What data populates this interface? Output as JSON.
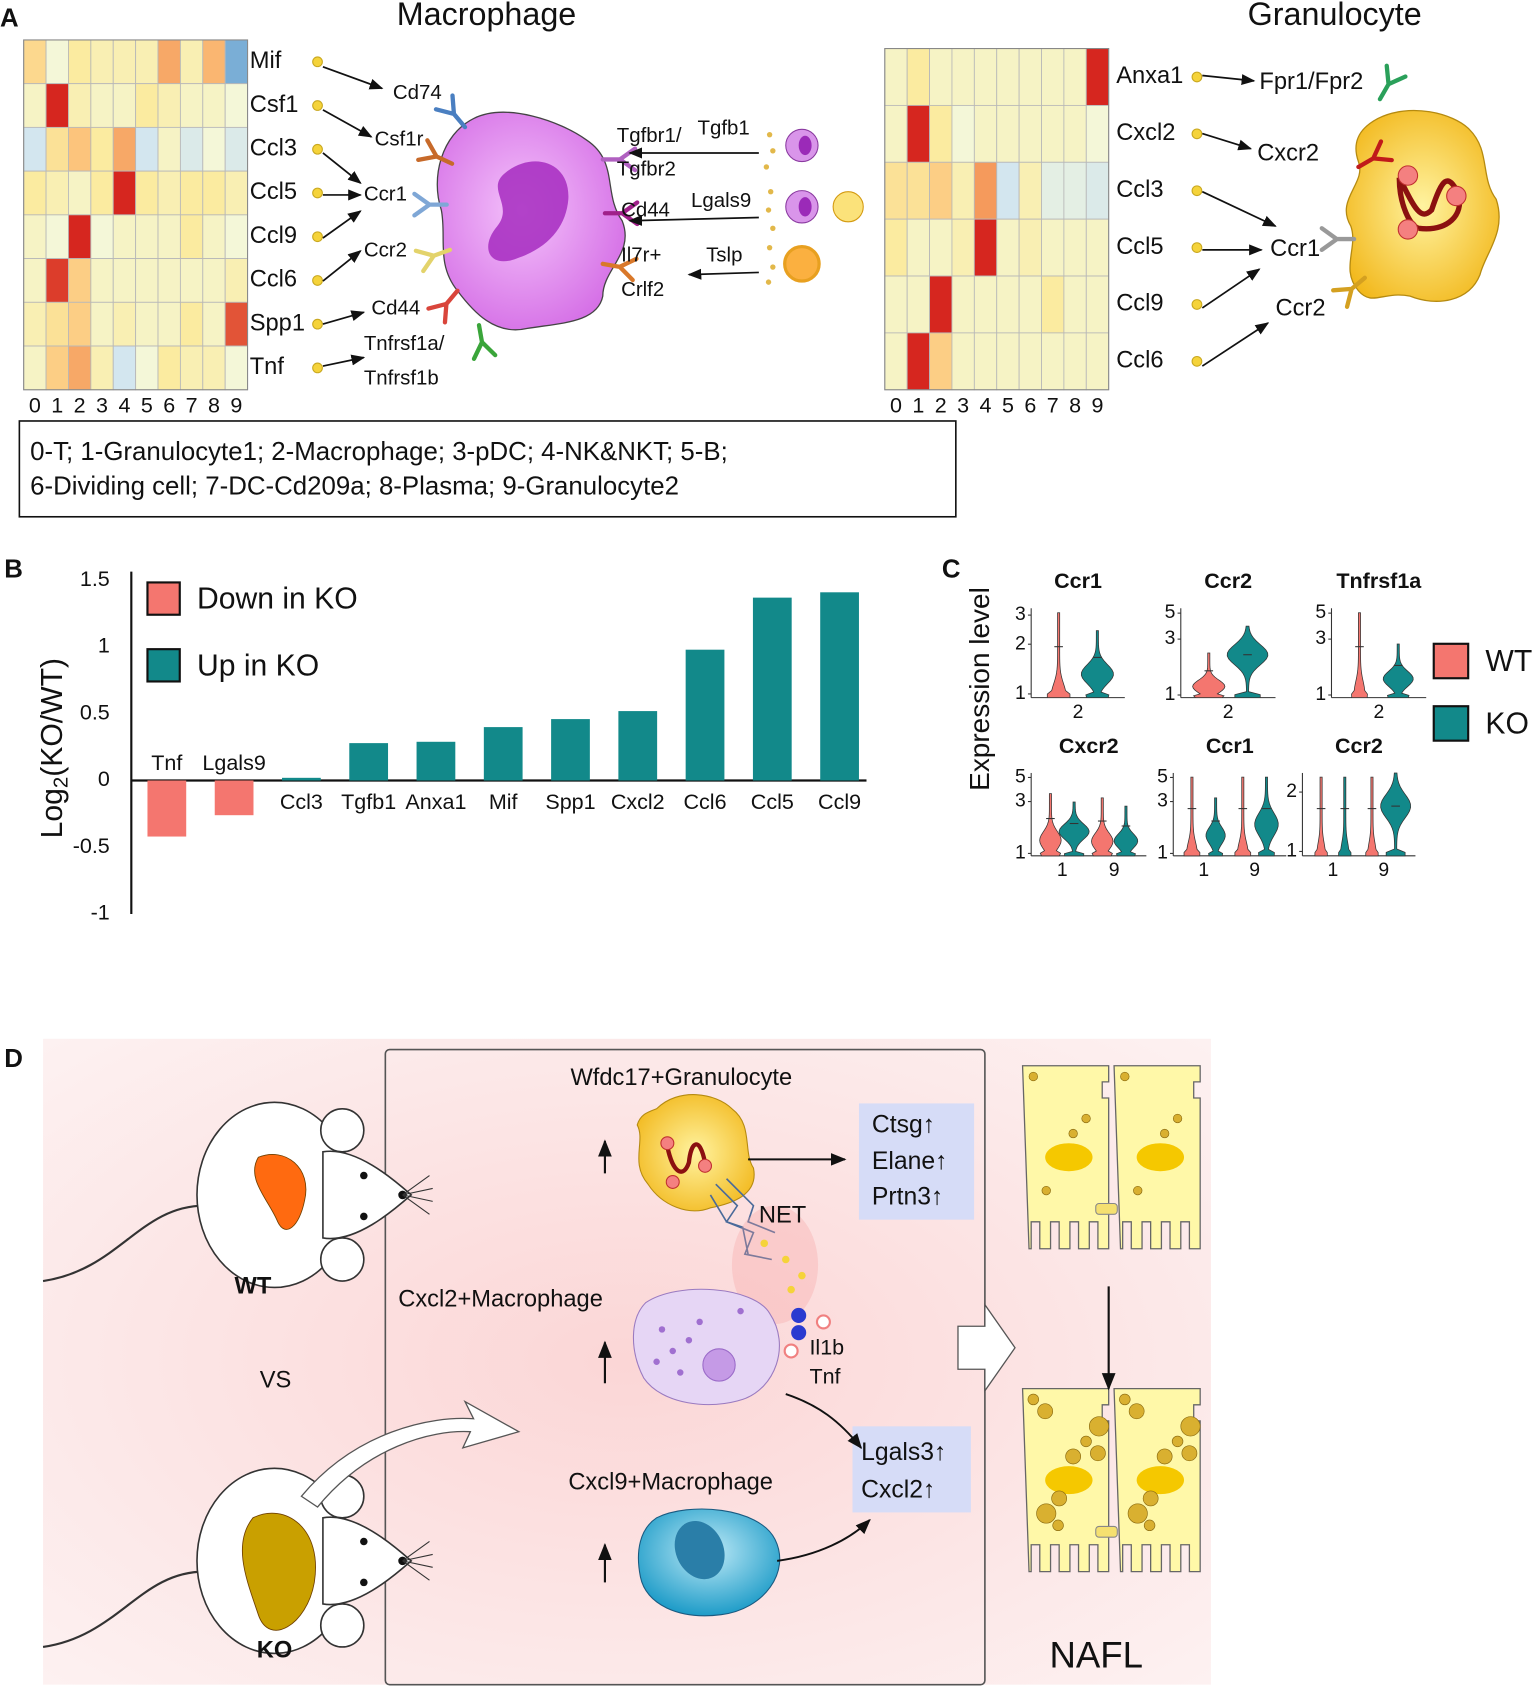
{
  "panel_labels": [
    "A",
    "B",
    "C",
    "D"
  ],
  "chart_data": [
    {
      "type": "heatmap",
      "title": "Macrophage",
      "rows": [
        "Mif",
        "Csf1",
        "Ccl3",
        "Ccl5",
        "Ccl9",
        "Ccl6",
        "Spp1",
        "Tnf"
      ],
      "categories": [
        "0",
        "1",
        "2",
        "3",
        "4",
        "5",
        "6",
        "7",
        "8",
        "9"
      ],
      "values": [
        [
          0.5,
          0,
          0.3,
          0.2,
          0.2,
          0.2,
          0.9,
          0.2,
          0.8,
          -1
        ],
        [
          0.1,
          2,
          0.2,
          0.1,
          0.1,
          0.3,
          0.2,
          0.1,
          0.1,
          0
        ],
        [
          -0.4,
          0.4,
          0.7,
          0.3,
          0.9,
          -0.4,
          0.1,
          -0.3,
          0,
          -0.3
        ],
        [
          0.3,
          0.2,
          0.1,
          0.3,
          2,
          0.3,
          0.2,
          0.3,
          0.3,
          0.2
        ],
        [
          0.1,
          0,
          2,
          0,
          0.1,
          0.1,
          0.1,
          0.3,
          0.1,
          0
        ],
        [
          0.1,
          1.8,
          0.6,
          0.1,
          0.1,
          0.1,
          0.1,
          0.1,
          0.1,
          0.2
        ],
        [
          0.2,
          0.4,
          0.6,
          0.1,
          0.2,
          0.1,
          0.1,
          0.3,
          0.1,
          1.6
        ],
        [
          0.1,
          0.6,
          0.9,
          0.2,
          -0.4,
          0,
          0.3,
          0.2,
          0.2,
          0
        ]
      ],
      "colorscale": [
        [
          -1,
          "#7aaed6"
        ],
        [
          -0.4,
          "#d3e6ef"
        ],
        [
          0,
          "#f4f7d8"
        ],
        [
          0.3,
          "#fbeba0"
        ],
        [
          0.7,
          "#fcc47c"
        ],
        [
          1,
          "#f59a5c"
        ],
        [
          2,
          "#d6261f"
        ]
      ]
    },
    {
      "type": "heatmap",
      "title": "Granulocyte",
      "rows": [
        "Anxa1",
        "Cxcl2",
        "Ccl3",
        "Ccl5",
        "Ccl9",
        "Ccl6"
      ],
      "categories": [
        "0",
        "1",
        "2",
        "3",
        "4",
        "5",
        "6",
        "7",
        "8",
        "9"
      ],
      "values": [
        [
          0.1,
          0.3,
          0.1,
          0.1,
          0.1,
          0.1,
          0.1,
          0.1,
          0.1,
          2
        ],
        [
          0.1,
          2,
          0.3,
          0,
          0.1,
          0.1,
          0.1,
          0.1,
          0.1,
          0
        ],
        [
          0.4,
          0.4,
          0.6,
          0.2,
          1,
          -0.4,
          0.2,
          -0.2,
          -0.2,
          -0.3
        ],
        [
          0.3,
          0.1,
          0.1,
          0.2,
          2,
          0.1,
          0.2,
          0.1,
          0.1,
          0.1
        ],
        [
          0.1,
          0.1,
          2,
          0.1,
          0.1,
          0.1,
          0.1,
          0.3,
          0.1,
          0.1
        ],
        [
          0.1,
          2,
          0.6,
          0.1,
          0.1,
          0.1,
          0.1,
          0.1,
          0.1,
          0.1
        ]
      ],
      "colorscale": [
        [
          -1,
          "#7aaed6"
        ],
        [
          -0.4,
          "#d3e6ef"
        ],
        [
          0,
          "#f4f7d8"
        ],
        [
          0.3,
          "#fbeba0"
        ],
        [
          0.7,
          "#fcc47c"
        ],
        [
          1,
          "#f59a5c"
        ],
        [
          2,
          "#d6261f"
        ]
      ]
    },
    {
      "type": "bar",
      "ylabel": {
        "text": "Log",
        "sub": "2",
        "rest": "(KO/WT)"
      },
      "categories": [
        "Tnf",
        "Lgals9",
        "Ccl3",
        "Tgfb1",
        "Anxa1",
        "Mif",
        "Spp1",
        "Cxcl2",
        "Ccl6",
        "Ccl5",
        "Ccl9"
      ],
      "series": [
        {
          "name": "Down in KO",
          "color": "#f4766f",
          "values": [
            -0.42,
            -0.26,
            null,
            null,
            null,
            null,
            null,
            null,
            null,
            null,
            null
          ]
        },
        {
          "name": "Up in KO",
          "color": "#12898a",
          "values": [
            null,
            null,
            0.02,
            0.28,
            0.29,
            0.4,
            0.46,
            0.52,
            0.98,
            1.37,
            1.41
          ]
        }
      ],
      "ylim": [
        -1,
        1.5
      ],
      "yticks": [
        -1,
        -0.5,
        0,
        0.5,
        1,
        1.5
      ],
      "grid": false,
      "legend": "upper left"
    },
    {
      "type": "violin",
      "ylabel": "Expression level",
      "log_scale": true,
      "legend": "right",
      "series": [
        {
          "name": "WT",
          "color": "#f4766f"
        },
        {
          "name": "KO",
          "color": "#12898a"
        }
      ],
      "subplots": [
        {
          "title": "Ccr1",
          "categories": [
            "2"
          ],
          "ylim": [
            0.95,
            3.3
          ],
          "yticks": [
            1,
            2,
            3
          ]
        },
        {
          "title": "Ccr2",
          "categories": [
            "2"
          ],
          "ylim": [
            0.95,
            5.5
          ],
          "yticks": [
            1,
            3,
            5
          ]
        },
        {
          "title": "Tnfrsf1a",
          "categories": [
            "2"
          ],
          "ylim": [
            0.95,
            5.5
          ],
          "yticks": [
            1,
            3,
            5
          ]
        },
        {
          "title": "Cxcr2",
          "categories": [
            "1",
            "9"
          ],
          "ylim": [
            0.95,
            5.5
          ],
          "yticks": [
            1,
            3,
            5
          ]
        },
        {
          "title": "Ccr1",
          "categories": [
            "1",
            "9"
          ],
          "ylim": [
            0.95,
            5.5
          ],
          "yticks": [
            1,
            3,
            5
          ]
        },
        {
          "title": "Ccr2",
          "categories": [
            "1",
            "9"
          ],
          "ylim": [
            0.95,
            2.5
          ],
          "yticks": [
            1,
            2
          ]
        }
      ]
    }
  ],
  "panel_a": {
    "macrophage_receptors": [
      "Cd74",
      "Csf1r",
      "Ccr1",
      "Ccr2",
      "Cd44",
      "Tnfrsf1a/",
      "Tnfrsf1b"
    ],
    "macrophage_ligands_right": [
      "Tgfb1",
      "Lgals9",
      "Tslp"
    ],
    "macrophage_receptors_right": [
      "Tgfbr1/",
      "Tgfbr2",
      "Cd44",
      "Il7r+",
      "Crlf2"
    ],
    "granulocyte_receptors": [
      "Fpr1/Fpr2",
      "Cxcr2",
      "Ccr1",
      "Ccr2"
    ],
    "cluster_key": [
      "0-T; 1-Granulocyte1; 2-Macrophage; 3-pDC; 4-NK&NKT; 5-B;",
      "6-Dividing cell; 7-DC-Cd209a; 8-Plasma; 9-Granulocyte2"
    ]
  },
  "panel_d": {
    "granulocyte": "Wfdc17+Granulocyte",
    "granulocyte_products": [
      "Ctsg↑",
      "Elane↑",
      "Prtn3↑"
    ],
    "net": "NET",
    "macrophage1": "Cxcl2+Macrophage",
    "cytokines": [
      "Il1b",
      "Tnf"
    ],
    "macrophage_products": [
      "Lgals3↑",
      "Cxcl2↑"
    ],
    "macrophage2": "Cxcl9+Macrophage",
    "wt": "WT",
    "vs": "VS",
    "ko": "KO",
    "outcome": "NAFL"
  }
}
